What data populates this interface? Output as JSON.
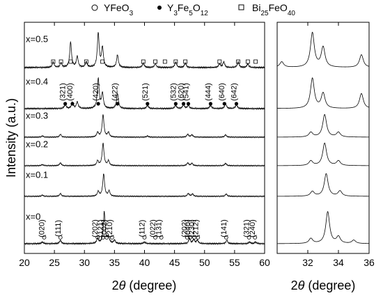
{
  "legend": [
    {
      "symbol": "circle-open",
      "label": "YFeO",
      "sub": "3",
      "tail": ""
    },
    {
      "symbol": "circle-filled",
      "label": "Y",
      "sub": "3",
      "tail": "Fe",
      "sub2": "5",
      "tail2": "O",
      "sub3": "12"
    },
    {
      "symbol": "square-open",
      "label": "Bi",
      "sub": "25",
      "tail": "FeO",
      "sub2": "40"
    }
  ],
  "chart_data": [
    {
      "type": "line",
      "xlabel_italic": "θ",
      "xlabel_pre": "2",
      "xlabel_post": " (degree)",
      "ylabel": "Intensity (a.u.)",
      "xlim": [
        20,
        60
      ],
      "xticks": [
        20,
        25,
        30,
        35,
        40,
        45,
        50,
        55,
        60
      ],
      "series": [
        {
          "name": "x=0.5",
          "peaks": [
            [
              24.8,
              0.15
            ],
            [
              26.1,
              0.12
            ],
            [
              27.7,
              0.7
            ],
            [
              28.8,
              0.3
            ],
            [
              30.3,
              0.15
            ],
            [
              32.3,
              0.95
            ],
            [
              33.0,
              0.55
            ],
            [
              35.5,
              0.35
            ],
            [
              39.8,
              0.12
            ],
            [
              41.8,
              0.1
            ],
            [
              45.2,
              0.15
            ],
            [
              46.8,
              0.12
            ],
            [
              52.5,
              0.1
            ],
            [
              53.2,
              0.15
            ],
            [
              55.6,
              0.15
            ],
            [
              57.2,
              0.1
            ]
          ]
        },
        {
          "name": "x=0.4",
          "peaks": [
            [
              26.8,
              0.12
            ],
            [
              28.0,
              0.18
            ],
            [
              28.8,
              0.2
            ],
            [
              32.3,
              0.9
            ],
            [
              33.0,
              0.45
            ],
            [
              35.5,
              0.45
            ],
            [
              40.5,
              0.1
            ],
            [
              45.2,
              0.1
            ],
            [
              46.5,
              0.12
            ],
            [
              47.3,
              0.1
            ],
            [
              51.0,
              0.1
            ],
            [
              53.5,
              0.15
            ],
            [
              55.3,
              0.12
            ]
          ]
        },
        {
          "name": "x=0.3",
          "peaks": [
            [
              23.0,
              0.05
            ],
            [
              26.0,
              0.12
            ],
            [
              32.2,
              0.2
            ],
            [
              33.1,
              0.95
            ],
            [
              34.0,
              0.2
            ],
            [
              40.5,
              0.05
            ],
            [
              47.2,
              0.12
            ],
            [
              47.9,
              0.1
            ],
            [
              53.5,
              0.1
            ]
          ]
        },
        {
          "name": "x=0.2",
          "peaks": [
            [
              23.0,
              0.05
            ],
            [
              26.0,
              0.12
            ],
            [
              32.2,
              0.2
            ],
            [
              33.1,
              0.95
            ],
            [
              34.0,
              0.2
            ],
            [
              47.2,
              0.12
            ],
            [
              47.9,
              0.1
            ],
            [
              53.5,
              0.1
            ]
          ]
        },
        {
          "name": "x=0.1",
          "peaks": [
            [
              23.0,
              0.05
            ],
            [
              26.0,
              0.12
            ],
            [
              32.3,
              0.2
            ],
            [
              33.2,
              0.95
            ],
            [
              34.1,
              0.22
            ],
            [
              47.3,
              0.12
            ],
            [
              48.0,
              0.1
            ],
            [
              53.6,
              0.1
            ]
          ]
        },
        {
          "name": "x=0",
          "peaks": [
            [
              23.0,
              0.05
            ],
            [
              26.0,
              0.1
            ],
            [
              32.2,
              0.15
            ],
            [
              33.3,
              0.95
            ],
            [
              34.0,
              0.2
            ],
            [
              35.0,
              0.1
            ],
            [
              40.0,
              0.05
            ],
            [
              47.5,
              0.15
            ],
            [
              48.2,
              0.12
            ],
            [
              48.8,
              0.1
            ],
            [
              53.7,
              0.1
            ],
            [
              57.5,
              0.05
            ],
            [
              58.5,
              0.05
            ]
          ]
        }
      ],
      "annotations": {
        "x=0.4": [
          "(321)",
          "(400)",
          "(420)",
          "(422)",
          "(521)",
          "(532)",
          "(620)",
          "(541)",
          "(444)",
          "(640)",
          "(642)"
        ],
        "x=0": [
          "(020)",
          "(111)",
          "(202)",
          "(121)",
          "(002)",
          "(210)",
          "(112)",
          "(022)",
          "(131)",
          "(202)",
          "(040)",
          "(230)",
          "(212)",
          "(141)",
          "(321)",
          "(240)"
        ]
      }
    },
    {
      "type": "line",
      "xlabel_italic": "θ",
      "xlabel_pre": "2",
      "xlabel_post": " (degree)",
      "xlim": [
        30,
        36
      ],
      "xticks": [
        32,
        34,
        36
      ],
      "series_count": 6
    }
  ]
}
